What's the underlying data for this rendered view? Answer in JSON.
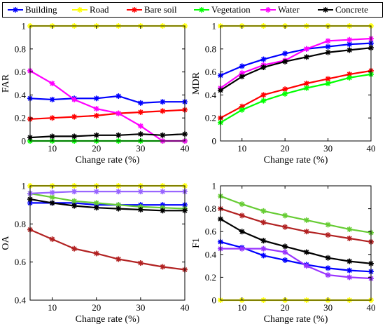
{
  "legend": [
    {
      "name": "Building",
      "color": "#0000FF",
      "marker": "asterisk"
    },
    {
      "name": "Road",
      "color": "#FFFF00",
      "marker": "asterisk"
    },
    {
      "name": "Bare soil",
      "color": "#FF0000",
      "marker": "asterisk"
    },
    {
      "name": "Vegetation",
      "color": "#00FF00",
      "marker": "asterisk"
    },
    {
      "name": "Water",
      "color": "#FF00FF",
      "marker": "asterisk"
    },
    {
      "name": "Concrete",
      "color": "#000000",
      "marker": "asterisk"
    }
  ],
  "chart_data": [
    {
      "type": "line",
      "ylabel": "FAR",
      "xlabel": "Change rate (%)",
      "x": [
        5,
        10,
        15,
        20,
        25,
        30,
        35,
        40
      ],
      "xlim": [
        5,
        40
      ],
      "xticks": [
        10,
        20,
        30,
        40
      ],
      "ylim": [
        0,
        1
      ],
      "yticks": [
        0,
        0.2,
        0.4,
        0.6,
        0.8,
        1
      ],
      "series": [
        {
          "name": "Building",
          "color": "#0000FF",
          "values": [
            0.37,
            0.36,
            0.37,
            0.37,
            0.39,
            0.33,
            0.34,
            0.34
          ]
        },
        {
          "name": "Road",
          "color": "#FFFF00",
          "values": [
            1.0,
            1.0,
            1.0,
            1.0,
            1.0,
            1.0,
            1.0,
            1.0
          ]
        },
        {
          "name": "Bare soil",
          "color": "#FF0000",
          "values": [
            0.19,
            0.2,
            0.21,
            0.22,
            0.24,
            0.25,
            0.26,
            0.27
          ]
        },
        {
          "name": "Vegetation",
          "color": "#00FF00",
          "values": [
            0.0,
            0.0,
            0.0,
            0.0,
            0.0,
            0.0,
            0.0,
            0.0
          ]
        },
        {
          "name": "Water",
          "color": "#FF00FF",
          "values": [
            0.61,
            0.5,
            0.36,
            0.28,
            0.24,
            0.13,
            0.0,
            0.0
          ]
        },
        {
          "name": "Concrete",
          "color": "#000000",
          "values": [
            0.03,
            0.04,
            0.04,
            0.05,
            0.05,
            0.06,
            0.05,
            0.06
          ]
        }
      ]
    },
    {
      "type": "line",
      "ylabel": "MDR",
      "xlabel": "Change rate (%)",
      "x": [
        5,
        10,
        15,
        20,
        25,
        30,
        35,
        40
      ],
      "xlim": [
        5,
        40
      ],
      "xticks": [
        10,
        20,
        30,
        40
      ],
      "ylim": [
        0,
        1
      ],
      "yticks": [
        0,
        0.2,
        0.4,
        0.6,
        0.8,
        1
      ],
      "series": [
        {
          "name": "Building",
          "color": "#0000FF",
          "values": [
            0.57,
            0.65,
            0.71,
            0.76,
            0.8,
            0.82,
            0.84,
            0.85
          ]
        },
        {
          "name": "Road",
          "color": "#FFFF00",
          "values": [
            1.0,
            1.0,
            1.0,
            1.0,
            1.0,
            1.0,
            1.0,
            1.0
          ]
        },
        {
          "name": "Bare soil",
          "color": "#FF0000",
          "values": [
            0.2,
            0.3,
            0.4,
            0.45,
            0.5,
            0.54,
            0.58,
            0.61
          ]
        },
        {
          "name": "Vegetation",
          "color": "#00FF00",
          "values": [
            0.16,
            0.27,
            0.35,
            0.41,
            0.46,
            0.5,
            0.55,
            0.58
          ]
        },
        {
          "name": "Water",
          "color": "#FF00FF",
          "values": [
            0.46,
            0.59,
            0.66,
            0.7,
            0.8,
            0.87,
            0.88,
            0.89
          ]
        },
        {
          "name": "Concrete",
          "color": "#000000",
          "values": [
            0.44,
            0.56,
            0.64,
            0.69,
            0.73,
            0.77,
            0.79,
            0.81
          ]
        }
      ]
    },
    {
      "type": "line",
      "ylabel": "OA",
      "xlabel": "Change rate (%)",
      "x": [
        5,
        10,
        15,
        20,
        25,
        30,
        35,
        40
      ],
      "xlim": [
        5,
        40
      ],
      "xticks": [
        10,
        20,
        30,
        40
      ],
      "ylim": [
        0.4,
        1
      ],
      "yticks": [
        0.4,
        0.6,
        0.8,
        1
      ],
      "series": [
        {
          "name": "Building",
          "color": "#0000FF",
          "values": [
            0.91,
            0.91,
            0.91,
            0.9,
            0.9,
            0.9,
            0.9,
            0.9
          ]
        },
        {
          "name": "Road",
          "color": "#FFFF00",
          "values": [
            1.0,
            1.0,
            1.0,
            1.0,
            1.0,
            1.0,
            1.0,
            1.0
          ]
        },
        {
          "name": "Bare soil",
          "color": "#B22222",
          "values": [
            0.77,
            0.72,
            0.67,
            0.645,
            0.615,
            0.595,
            0.575,
            0.56
          ]
        },
        {
          "name": "Vegetation",
          "color": "#66CC33",
          "values": [
            0.96,
            0.94,
            0.92,
            0.91,
            0.9,
            0.89,
            0.885,
            0.88
          ]
        },
        {
          "name": "Water",
          "color": "#9966FF",
          "values": [
            0.96,
            0.965,
            0.97,
            0.97,
            0.97,
            0.97,
            0.97,
            0.97
          ]
        },
        {
          "name": "Concrete",
          "color": "#000000",
          "values": [
            0.93,
            0.91,
            0.895,
            0.885,
            0.88,
            0.875,
            0.87,
            0.87
          ]
        }
      ]
    },
    {
      "type": "line",
      "ylabel": "F1",
      "xlabel": "Change rate (%)",
      "x": [
        5,
        10,
        15,
        20,
        25,
        30,
        35,
        40
      ],
      "xlim": [
        5,
        40
      ],
      "xticks": [
        10,
        20,
        30,
        40
      ],
      "ylim": [
        0,
        1
      ],
      "yticks": [
        0,
        0.2,
        0.4,
        0.6,
        0.8,
        1
      ],
      "series": [
        {
          "name": "Building",
          "color": "#0000FF",
          "values": [
            0.51,
            0.46,
            0.39,
            0.35,
            0.31,
            0.28,
            0.26,
            0.25
          ]
        },
        {
          "name": "Road",
          "color": "#FFFF00",
          "values": [
            0.0,
            0.0,
            0.0,
            0.0,
            0.0,
            0.0,
            0.0,
            0.0
          ]
        },
        {
          "name": "Bare soil",
          "color": "#B22222",
          "values": [
            0.8,
            0.74,
            0.68,
            0.64,
            0.6,
            0.57,
            0.54,
            0.51
          ]
        },
        {
          "name": "Vegetation",
          "color": "#66CC33",
          "values": [
            0.91,
            0.84,
            0.78,
            0.74,
            0.7,
            0.66,
            0.62,
            0.59
          ]
        },
        {
          "name": "Water",
          "color": "#9933FF",
          "values": [
            0.45,
            0.45,
            0.45,
            0.42,
            0.3,
            0.22,
            0.2,
            0.19
          ]
        },
        {
          "name": "Concrete",
          "color": "#000000",
          "values": [
            0.71,
            0.6,
            0.52,
            0.47,
            0.42,
            0.37,
            0.34,
            0.32
          ]
        }
      ]
    }
  ]
}
